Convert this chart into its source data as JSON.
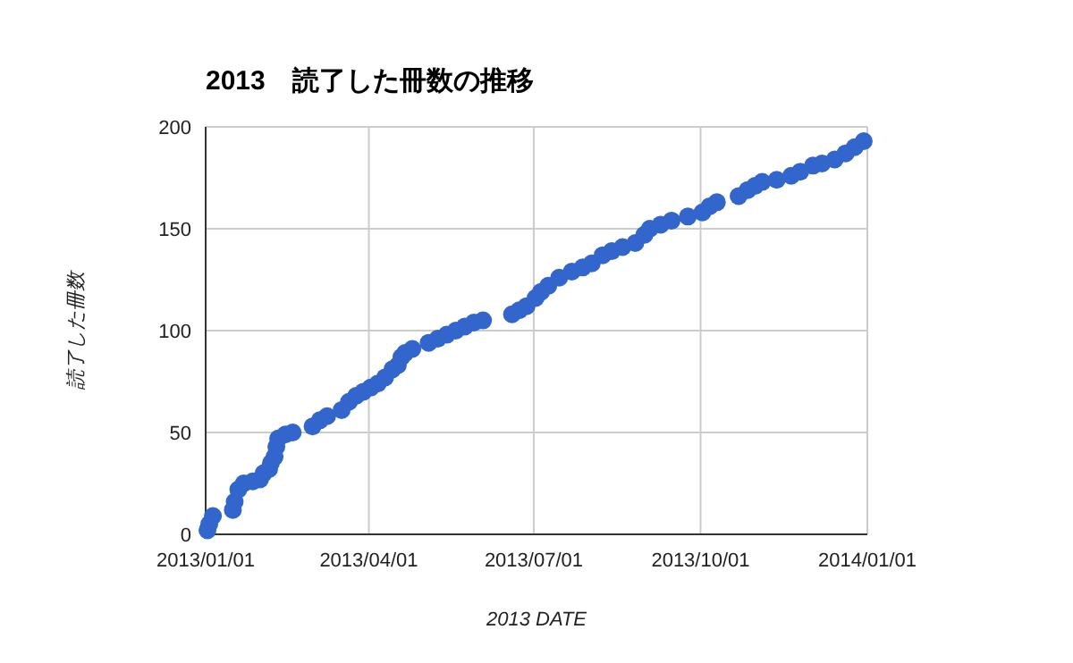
{
  "chart_data": {
    "type": "scatter",
    "title": "2013　読了した冊数の推移",
    "xlabel": "2013 DATE",
    "ylabel": "読了した冊数",
    "x": [
      "2013-01-02",
      "2013-01-03",
      "2013-01-05",
      "2013-01-16",
      "2013-01-17",
      "2013-01-19",
      "2013-01-22",
      "2013-01-27",
      "2013-01-31",
      "2013-02-02",
      "2013-02-05",
      "2013-02-06",
      "2013-02-08",
      "2013-02-09",
      "2013-02-10",
      "2013-02-14",
      "2013-02-18",
      "2013-03-01",
      "2013-03-05",
      "2013-03-09",
      "2013-03-17",
      "2013-03-21",
      "2013-03-25",
      "2013-03-29",
      "2013-04-02",
      "2013-04-06",
      "2013-04-10",
      "2013-04-14",
      "2013-04-17",
      "2013-04-19",
      "2013-04-21",
      "2013-04-25",
      "2013-05-04",
      "2013-05-09",
      "2013-05-14",
      "2013-05-19",
      "2013-05-24",
      "2013-05-29",
      "2013-06-03",
      "2013-06-19",
      "2013-06-23",
      "2013-06-27",
      "2013-07-02",
      "2013-07-05",
      "2013-07-09",
      "2013-07-15",
      "2013-07-22",
      "2013-07-28",
      "2013-08-02",
      "2013-08-08",
      "2013-08-13",
      "2013-08-19",
      "2013-08-26",
      "2013-08-31",
      "2013-09-03",
      "2013-09-09",
      "2013-09-15",
      "2013-09-24",
      "2013-10-02",
      "2013-10-06",
      "2013-10-10",
      "2013-10-22",
      "2013-10-27",
      "2013-10-31",
      "2013-11-04",
      "2013-11-12",
      "2013-11-20",
      "2013-11-25",
      "2013-12-02",
      "2013-12-07",
      "2013-12-14",
      "2013-12-20",
      "2013-12-25",
      "2013-12-30"
    ],
    "series": [
      {
        "color": "#3366cc",
        "values": [
          2,
          5,
          9,
          12,
          16,
          22,
          25,
          26,
          27,
          30,
          32,
          35,
          38,
          43,
          47,
          49,
          50,
          53,
          56,
          58,
          61,
          65,
          68,
          70,
          72,
          74,
          77,
          81,
          83,
          87,
          89,
          91,
          94,
          96,
          98,
          100,
          102,
          104,
          105,
          108,
          110,
          112,
          116,
          119,
          122,
          126,
          129,
          131,
          133,
          137,
          139,
          141,
          143,
          147,
          150,
          152,
          154,
          156,
          158,
          161,
          163,
          166,
          169,
          171,
          173,
          174,
          176,
          178,
          181,
          182,
          184,
          187,
          190,
          193
        ]
      }
    ],
    "xlim": [
      "2013-01-01",
      "2014-01-01"
    ],
    "xticks": [
      {
        "value": "2013-01-01",
        "label": "2013/01/01"
      },
      {
        "value": "2013-04-01",
        "label": "2013/04/01"
      },
      {
        "value": "2013-07-01",
        "label": "2013/07/01"
      },
      {
        "value": "2013-10-01",
        "label": "2013/10/01"
      },
      {
        "value": "2014-01-01",
        "label": "2014/01/01"
      }
    ],
    "ylim": [
      0,
      200
    ],
    "yticks": [
      0,
      50,
      100,
      150,
      200
    ],
    "grid": true,
    "marker": "circle"
  }
}
